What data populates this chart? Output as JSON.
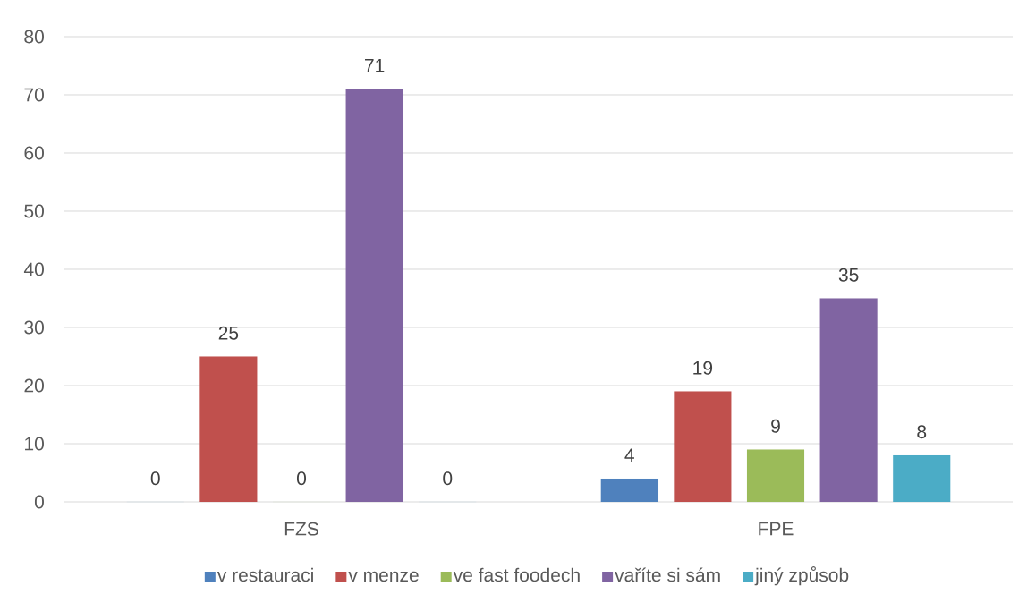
{
  "chart_data": {
    "type": "bar",
    "categories": [
      "FZS",
      "FPE"
    ],
    "series": [
      {
        "name": "v restauraci",
        "color": "#4f81bd",
        "values": [
          0,
          4
        ]
      },
      {
        "name": "v menze",
        "color": "#c0504d",
        "values": [
          25,
          19
        ]
      },
      {
        "name": "ve fast foodech",
        "color": "#9bbb59",
        "values": [
          0,
          9
        ]
      },
      {
        "name": "vaříte si sám",
        "color": "#8064a2",
        "values": [
          71,
          35
        ]
      },
      {
        "name": "jiný způsob",
        "color": "#4bacc6",
        "values": [
          0,
          8
        ]
      }
    ],
    "ylim": [
      0,
      80
    ],
    "yticks": [
      0,
      10,
      20,
      30,
      40,
      50,
      60,
      70,
      80
    ],
    "grid": "y",
    "legend": "bottom",
    "data_labels": true
  }
}
